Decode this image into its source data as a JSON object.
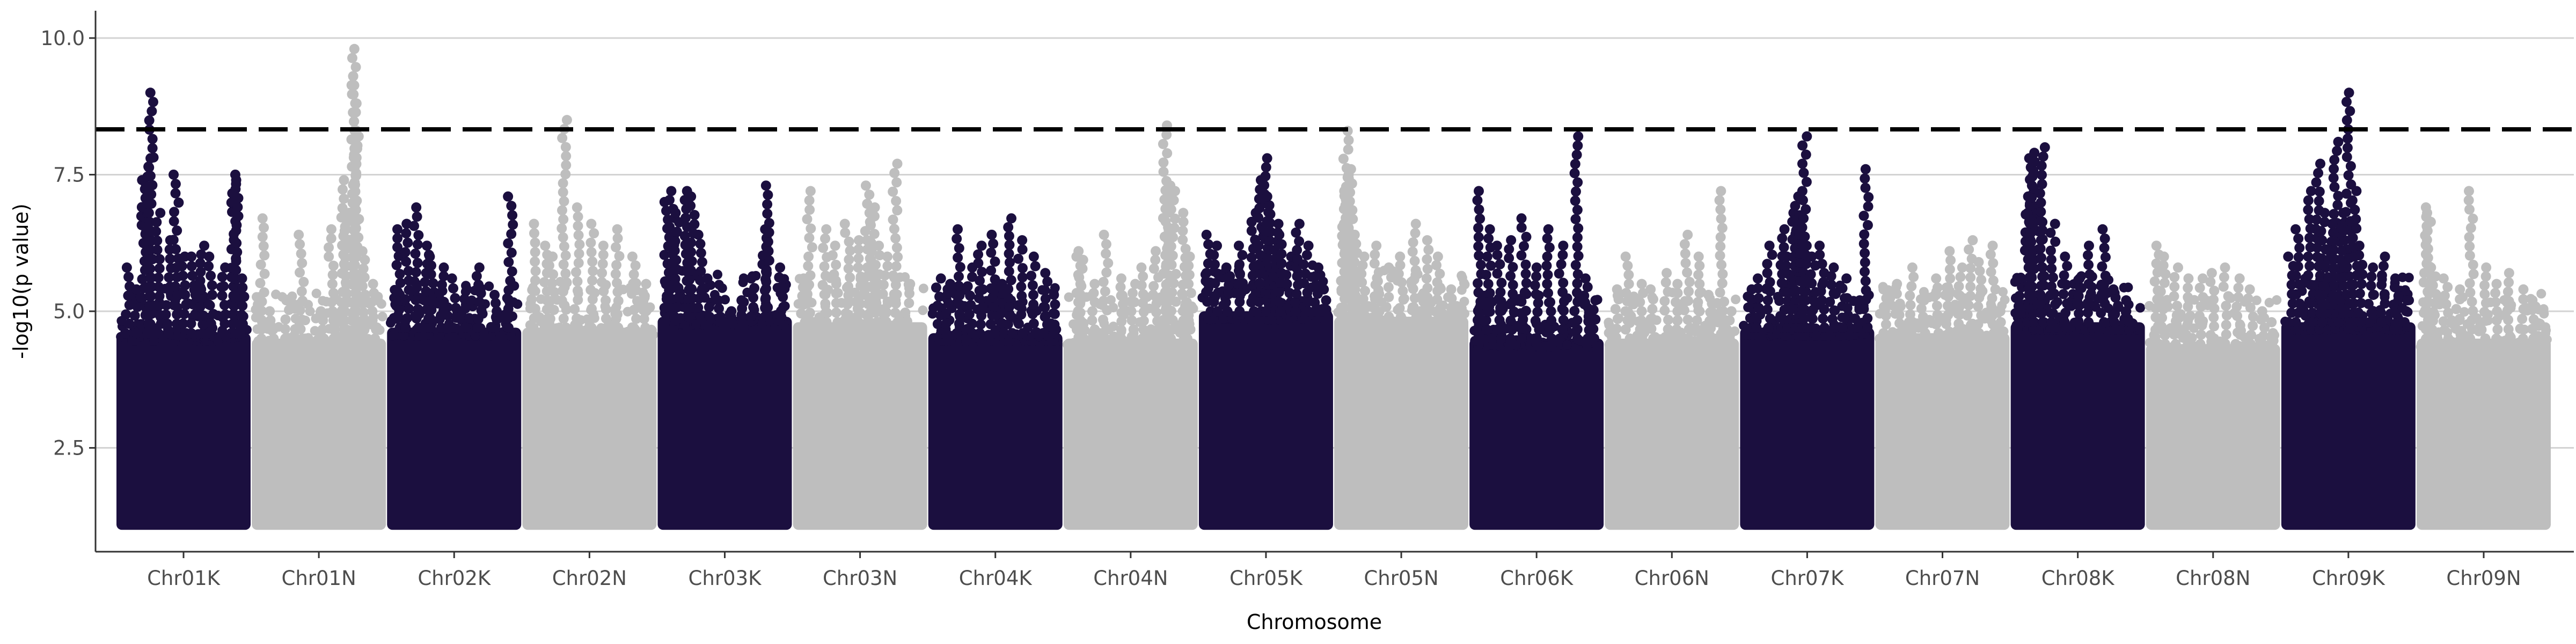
{
  "chart_data": {
    "type": "scatter",
    "title": "",
    "xlabel": "Chromosome",
    "ylabel": "-log10(p value)",
    "ylim": [
      0.6,
      10.5
    ],
    "yticks": [
      2.5,
      5.0,
      7.5,
      10.0
    ],
    "ytick_labels": [
      "2.5",
      "5.0",
      "7.5",
      "10.0"
    ],
    "grid": "horizontal",
    "legend": "none",
    "colors": {
      "K": "#1b0f3f",
      "N": "#bebebe",
      "threshold": "#000000",
      "grid": "#d3d3d3",
      "axis": "#333333"
    },
    "significance_threshold": 8.33,
    "density_floor": 1.0,
    "chromosomes": [
      {
        "name": "Chr01K",
        "group": "K",
        "bulk_top": 4.6,
        "peaks": [
          [
            0.05,
            5.8
          ],
          [
            0.12,
            5.4
          ],
          [
            0.18,
            7.4
          ],
          [
            0.22,
            7.8
          ],
          [
            0.24,
            9.0
          ],
          [
            0.3,
            6.8
          ],
          [
            0.38,
            6.3
          ],
          [
            0.44,
            7.5
          ],
          [
            0.5,
            6.0
          ],
          [
            0.58,
            6.0
          ],
          [
            0.65,
            6.2
          ],
          [
            0.72,
            6.0
          ],
          [
            0.82,
            5.8
          ],
          [
            0.9,
            7.5
          ],
          [
            0.92,
            7.4
          ],
          [
            0.97,
            5.6
          ]
        ]
      },
      {
        "name": "Chr01N",
        "group": "N",
        "bulk_top": 4.5,
        "peaks": [
          [
            0.05,
            6.7
          ],
          [
            0.12,
            5.0
          ],
          [
            0.25,
            5.2
          ],
          [
            0.36,
            6.4
          ],
          [
            0.52,
            5.0
          ],
          [
            0.6,
            6.5
          ],
          [
            0.7,
            7.4
          ],
          [
            0.72,
            6.8
          ],
          [
            0.78,
            9.8
          ],
          [
            0.79,
            9.3
          ],
          [
            0.8,
            8.2
          ],
          [
            0.86,
            6.1
          ],
          [
            0.94,
            5.5
          ]
        ]
      },
      {
        "name": "Chr02K",
        "group": "K",
        "bulk_top": 4.7,
        "peaks": [
          [
            0.06,
            6.5
          ],
          [
            0.12,
            6.6
          ],
          [
            0.2,
            6.9
          ],
          [
            0.28,
            6.2
          ],
          [
            0.32,
            6.0
          ],
          [
            0.4,
            5.8
          ],
          [
            0.5,
            5.6
          ],
          [
            0.6,
            5.4
          ],
          [
            0.7,
            5.8
          ],
          [
            0.82,
            5.3
          ],
          [
            0.95,
            7.1
          ]
        ]
      },
      {
        "name": "Chr02N",
        "group": "N",
        "bulk_top": 4.7,
        "peaks": [
          [
            0.06,
            6.6
          ],
          [
            0.15,
            6.2
          ],
          [
            0.2,
            6.0
          ],
          [
            0.3,
            8.5
          ],
          [
            0.4,
            6.9
          ],
          [
            0.52,
            6.6
          ],
          [
            0.62,
            6.2
          ],
          [
            0.72,
            6.5
          ],
          [
            0.86,
            6.0
          ],
          [
            0.94,
            5.5
          ]
        ]
      },
      {
        "name": "Chr03K",
        "group": "K",
        "bulk_top": 4.9,
        "peaks": [
          [
            0.04,
            7.0
          ],
          [
            0.08,
            7.2
          ],
          [
            0.12,
            6.8
          ],
          [
            0.2,
            7.2
          ],
          [
            0.24,
            7.1
          ],
          [
            0.3,
            6.4
          ],
          [
            0.36,
            5.6
          ],
          [
            0.45,
            5.2
          ],
          [
            0.55,
            5.0
          ],
          [
            0.62,
            5.2
          ],
          [
            0.72,
            5.6
          ],
          [
            0.82,
            6.5
          ],
          [
            0.84,
            7.3
          ],
          [
            0.95,
            5.8
          ]
        ]
      },
      {
        "name": "Chr03N",
        "group": "N",
        "bulk_top": 4.8,
        "peaks": [
          [
            0.05,
            5.6
          ],
          [
            0.1,
            7.2
          ],
          [
            0.22,
            6.5
          ],
          [
            0.3,
            6.2
          ],
          [
            0.4,
            6.6
          ],
          [
            0.5,
            6.3
          ],
          [
            0.56,
            7.3
          ],
          [
            0.6,
            6.9
          ],
          [
            0.64,
            6.2
          ],
          [
            0.7,
            6.0
          ],
          [
            0.78,
            7.7
          ],
          [
            0.88,
            5.5
          ]
        ]
      },
      {
        "name": "Chr04K",
        "group": "K",
        "bulk_top": 4.6,
        "peaks": [
          [
            0.05,
            5.6
          ],
          [
            0.12,
            5.5
          ],
          [
            0.2,
            6.5
          ],
          [
            0.3,
            5.8
          ],
          [
            0.38,
            6.2
          ],
          [
            0.48,
            6.4
          ],
          [
            0.55,
            5.5
          ],
          [
            0.62,
            6.7
          ],
          [
            0.7,
            6.3
          ],
          [
            0.8,
            6.0
          ],
          [
            0.9,
            5.7
          ],
          [
            0.96,
            5.3
          ]
        ]
      },
      {
        "name": "Chr04N",
        "group": "N",
        "bulk_top": 4.5,
        "peaks": [
          [
            0.08,
            6.0
          ],
          [
            0.1,
            6.1
          ],
          [
            0.2,
            5.5
          ],
          [
            0.3,
            6.4
          ],
          [
            0.42,
            5.6
          ],
          [
            0.52,
            5.5
          ],
          [
            0.6,
            5.8
          ],
          [
            0.7,
            6.1
          ],
          [
            0.78,
            8.4
          ],
          [
            0.8,
            7.3
          ],
          [
            0.84,
            7.2
          ],
          [
            0.92,
            6.8
          ],
          [
            0.96,
            6.0
          ]
        ]
      },
      {
        "name": "Chr05K",
        "group": "K",
        "bulk_top": 5.0,
        "peaks": [
          [
            0.04,
            6.4
          ],
          [
            0.1,
            6.2
          ],
          [
            0.2,
            5.8
          ],
          [
            0.3,
            6.2
          ],
          [
            0.4,
            6.8
          ],
          [
            0.46,
            7.4
          ],
          [
            0.5,
            7.8
          ],
          [
            0.52,
            7.1
          ],
          [
            0.58,
            6.6
          ],
          [
            0.62,
            6.4
          ],
          [
            0.68,
            6.0
          ],
          [
            0.75,
            6.6
          ],
          [
            0.82,
            6.2
          ],
          [
            0.9,
            5.8
          ],
          [
            0.96,
            5.4
          ]
        ]
      },
      {
        "name": "Chr05N",
        "group": "N",
        "bulk_top": 4.9,
        "peaks": [
          [
            0.04,
            7.2
          ],
          [
            0.08,
            7.6
          ],
          [
            0.1,
            7.5
          ],
          [
            0.06,
            8.3
          ],
          [
            0.14,
            6.4
          ],
          [
            0.2,
            6.0
          ],
          [
            0.3,
            6.2
          ],
          [
            0.4,
            5.8
          ],
          [
            0.5,
            6.0
          ],
          [
            0.6,
            6.6
          ],
          [
            0.7,
            6.3
          ],
          [
            0.8,
            6.0
          ],
          [
            0.9,
            5.4
          ]
        ]
      },
      {
        "name": "Chr06K",
        "group": "K",
        "bulk_top": 4.5,
        "peaks": [
          [
            0.05,
            7.2
          ],
          [
            0.12,
            6.5
          ],
          [
            0.2,
            6.2
          ],
          [
            0.3,
            6.3
          ],
          [
            0.4,
            6.7
          ],
          [
            0.5,
            5.8
          ],
          [
            0.6,
            6.5
          ],
          [
            0.7,
            6.2
          ],
          [
            0.82,
            8.2
          ],
          [
            0.9,
            5.6
          ],
          [
            0.96,
            5.2
          ]
        ]
      },
      {
        "name": "Chr06N",
        "group": "N",
        "bulk_top": 4.5,
        "peaks": [
          [
            0.06,
            5.4
          ],
          [
            0.15,
            6.0
          ],
          [
            0.25,
            5.5
          ],
          [
            0.35,
            5.4
          ],
          [
            0.45,
            5.7
          ],
          [
            0.55,
            5.5
          ],
          [
            0.62,
            6.4
          ],
          [
            0.72,
            6.0
          ],
          [
            0.8,
            5.3
          ],
          [
            0.9,
            7.2
          ],
          [
            0.96,
            5.0
          ]
        ]
      },
      {
        "name": "Chr07K",
        "group": "K",
        "bulk_top": 4.7,
        "peaks": [
          [
            0.05,
            5.4
          ],
          [
            0.1,
            5.6
          ],
          [
            0.2,
            6.2
          ],
          [
            0.3,
            6.5
          ],
          [
            0.35,
            6.0
          ],
          [
            0.4,
            6.8
          ],
          [
            0.42,
            7.1
          ],
          [
            0.45,
            6.4
          ],
          [
            0.48,
            8.2
          ],
          [
            0.55,
            6.0
          ],
          [
            0.62,
            6.2
          ],
          [
            0.7,
            5.8
          ],
          [
            0.8,
            5.6
          ],
          [
            0.9,
            5.2
          ],
          [
            0.97,
            7.6
          ]
        ]
      },
      {
        "name": "Chr07N",
        "group": "N",
        "bulk_top": 4.6,
        "peaks": [
          [
            0.05,
            5.4
          ],
          [
            0.15,
            5.5
          ],
          [
            0.25,
            5.8
          ],
          [
            0.35,
            5.2
          ],
          [
            0.45,
            5.6
          ],
          [
            0.55,
            6.1
          ],
          [
            0.65,
            5.8
          ],
          [
            0.72,
            6.3
          ],
          [
            0.8,
            5.9
          ],
          [
            0.9,
            6.2
          ],
          [
            0.96,
            5.0
          ]
        ]
      },
      {
        "name": "Chr08K",
        "group": "K",
        "bulk_top": 4.8,
        "peaks": [
          [
            0.05,
            5.6
          ],
          [
            0.1,
            7.1
          ],
          [
            0.12,
            7.8
          ],
          [
            0.14,
            7.9
          ],
          [
            0.2,
            6.8
          ],
          [
            0.22,
            8.0
          ],
          [
            0.3,
            6.6
          ],
          [
            0.4,
            6.0
          ],
          [
            0.5,
            5.6
          ],
          [
            0.6,
            6.2
          ],
          [
            0.7,
            6.5
          ],
          [
            0.8,
            5.4
          ],
          [
            0.9,
            5.2
          ]
        ]
      },
      {
        "name": "Chr08N",
        "group": "N",
        "bulk_top": 4.4,
        "peaks": [
          [
            0.05,
            6.2
          ],
          [
            0.1,
            6.0
          ],
          [
            0.2,
            5.8
          ],
          [
            0.3,
            5.6
          ],
          [
            0.4,
            5.6
          ],
          [
            0.5,
            5.7
          ],
          [
            0.6,
            5.8
          ],
          [
            0.7,
            5.6
          ],
          [
            0.8,
            5.4
          ],
          [
            0.9,
            5.0
          ],
          [
            0.96,
            4.8
          ]
        ]
      },
      {
        "name": "Chr09K",
        "group": "K",
        "bulk_top": 4.8,
        "peaks": [
          [
            0.04,
            6.0
          ],
          [
            0.1,
            6.5
          ],
          [
            0.2,
            7.2
          ],
          [
            0.26,
            7.7
          ],
          [
            0.3,
            6.8
          ],
          [
            0.36,
            6.6
          ],
          [
            0.4,
            8.1
          ],
          [
            0.44,
            6.6
          ],
          [
            0.48,
            6.8
          ],
          [
            0.5,
            9.0
          ],
          [
            0.55,
            7.2
          ],
          [
            0.6,
            6.2
          ],
          [
            0.68,
            5.8
          ],
          [
            0.78,
            6.0
          ],
          [
            0.88,
            5.6
          ],
          [
            0.96,
            5.2
          ]
        ]
      },
      {
        "name": "Chr09N",
        "group": "N",
        "bulk_top": 4.5,
        "peaks": [
          [
            0.04,
            6.9
          ],
          [
            0.06,
            6.8
          ],
          [
            0.1,
            5.8
          ],
          [
            0.2,
            5.6
          ],
          [
            0.3,
            5.4
          ],
          [
            0.4,
            7.2
          ],
          [
            0.5,
            5.8
          ],
          [
            0.6,
            5.5
          ],
          [
            0.7,
            5.7
          ],
          [
            0.8,
            5.4
          ],
          [
            0.9,
            5.2
          ]
        ]
      }
    ]
  }
}
